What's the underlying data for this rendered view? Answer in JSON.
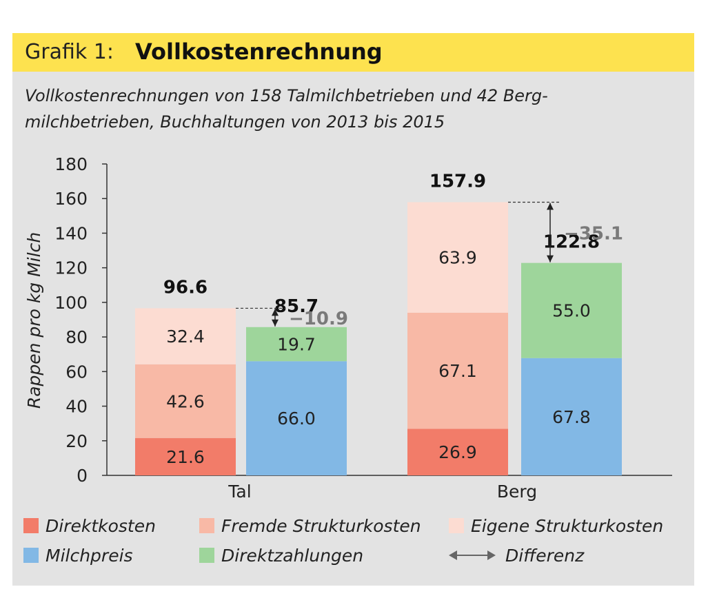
{
  "header": {
    "prefix": "Grafik 1:",
    "title": "Vollkostenrechnung",
    "subtitle_line1": "Vollkostenrechnungen von 158 Talmilchbetrieben und 42 Berg-",
    "subtitle_line2": "milchbetrieben, Buchhaltungen von 2013 bis 2015"
  },
  "chart_data": {
    "type": "bar",
    "stacked": true,
    "ylabel": "Rappen pro kg Milch",
    "ylim": [
      0,
      180
    ],
    "yticks": [
      0,
      20,
      40,
      60,
      80,
      100,
      120,
      140,
      160,
      180
    ],
    "categories": [
      "Tal",
      "Berg"
    ],
    "groups": [
      {
        "category": "Tal",
        "bars": [
          {
            "kind": "costs",
            "total": "96.6",
            "segments": [
              {
                "name": "Direktkosten",
                "value": 21.6,
                "label": "21.6",
                "color": "#f27c69"
              },
              {
                "name": "Fremde Strukturkosten",
                "value": 42.6,
                "label": "42.6",
                "color": "#f8b9a6"
              },
              {
                "name": "Eigene Strukturkosten",
                "value": 32.4,
                "label": "32.4",
                "color": "#fcdcd2"
              }
            ]
          },
          {
            "kind": "revenue",
            "total": "85.7",
            "segments": [
              {
                "name": "Milchpreis",
                "value": 66.0,
                "label": "66.0",
                "color": "#82b8e5"
              },
              {
                "name": "Direktzahlungen",
                "value": 19.7,
                "label": "19.7",
                "color": "#9ed59b"
              }
            ]
          }
        ],
        "difference": {
          "value": -10.9,
          "label": "−10.9"
        }
      },
      {
        "category": "Berg",
        "bars": [
          {
            "kind": "costs",
            "total": "157.9",
            "segments": [
              {
                "name": "Direktkosten",
                "value": 26.9,
                "label": "26.9",
                "color": "#f27c69"
              },
              {
                "name": "Fremde Strukturkosten",
                "value": 67.1,
                "label": "67.1",
                "color": "#f8b9a6"
              },
              {
                "name": "Eigene Strukturkosten",
                "value": 63.9,
                "label": "63.9",
                "color": "#fcdcd2"
              }
            ]
          },
          {
            "kind": "revenue",
            "total": "122.8",
            "segments": [
              {
                "name": "Milchpreis",
                "value": 67.8,
                "label": "67.8",
                "color": "#82b8e5"
              },
              {
                "name": "Direktzahlungen",
                "value": 55.0,
                "label": "55.0",
                "color": "#9ed59b"
              }
            ]
          }
        ],
        "difference": {
          "value": -35.1,
          "label": "−35.1"
        }
      }
    ],
    "legend": [
      {
        "name": "Direktkosten",
        "color": "#f27c69"
      },
      {
        "name": "Fremde Strukturkosten",
        "color": "#f8b9a6"
      },
      {
        "name": "Eigene Strukturkosten",
        "color": "#fcdcd2"
      },
      {
        "name": "Milchpreis",
        "color": "#82b8e5"
      },
      {
        "name": "Direktzahlungen",
        "color": "#9ed59b"
      },
      {
        "name": "Differenz",
        "color": "#666666",
        "symbol": "double-arrow"
      }
    ]
  }
}
